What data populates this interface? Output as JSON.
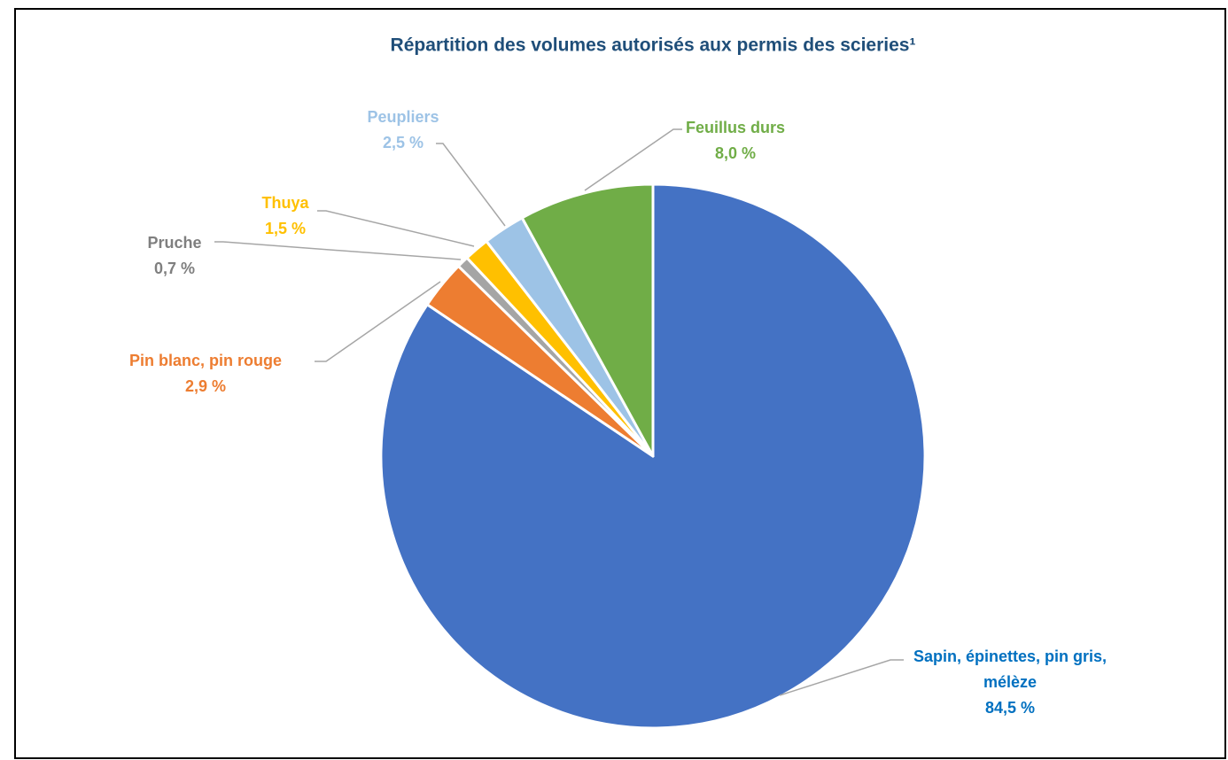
{
  "chart_data": {
    "type": "pie",
    "title": "Répartition des volumes autorisés aux permis des scieries¹",
    "categories": [
      "Sapin, épinettes, pin gris, mélèze",
      "Pin blanc, pin rouge",
      "Pruche",
      "Thuya",
      "Peupliers",
      "Feuillus durs"
    ],
    "values": [
      84.5,
      2.9,
      0.7,
      1.5,
      2.5,
      8.0
    ],
    "value_labels": [
      "84,5 %",
      "2,9 %",
      "0,7 %",
      "1,5 %",
      "2,5 %",
      "8,0 %"
    ],
    "colors": [
      "#4472c4",
      "#ed7d31",
      "#a5a5a5",
      "#ffc000",
      "#9dc3e6",
      "#70ad47"
    ],
    "label_colors": [
      "#0070c0",
      "#ed7d31",
      "#7f7f7f",
      "#ffc000",
      "#9dc3e6",
      "#70ad47"
    ]
  }
}
